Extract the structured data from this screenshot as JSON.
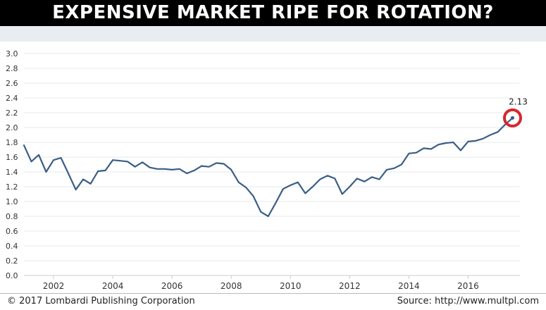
{
  "banner": {
    "title": "EXPENSIVE MARKET RIPE FOR ROTATION?"
  },
  "footer": {
    "copyright": "© 2017 Lombardi Publishing Corporation",
    "source": "Source: http://www.multpl.com"
  },
  "colors": {
    "line": "#3a5e86",
    "highlight": "#d7262d",
    "banner": "#000000",
    "grid": "#e6e9ed"
  },
  "chart_data": {
    "type": "line",
    "title": "",
    "xlabel": "",
    "ylabel": "",
    "xlim": [
      2001,
      2017.75
    ],
    "ylim": [
      0.0,
      3.0
    ],
    "grid": true,
    "x_ticks": [
      2002,
      2004,
      2006,
      2008,
      2010,
      2012,
      2014,
      2016
    ],
    "y_ticks": [
      "0.0",
      "0.2",
      "0.4",
      "0.6",
      "0.8",
      "1.0",
      "1.2",
      "1.4",
      "1.6",
      "1.8",
      "2.0",
      "2.2",
      "2.4",
      "2.6",
      "2.8",
      "3.0"
    ],
    "series": [
      {
        "x": [
          2001.0,
          2001.25,
          2001.5,
          2001.75,
          2002.0,
          2002.25,
          2002.5,
          2002.75,
          2003.0,
          2003.25,
          2003.5,
          2003.75,
          2004.0,
          2004.25,
          2004.5,
          2004.75,
          2005.0,
          2005.25,
          2005.5,
          2005.75,
          2006.0,
          2006.25,
          2006.5,
          2006.75,
          2007.0,
          2007.25,
          2007.5,
          2007.75,
          2008.0,
          2008.25,
          2008.5,
          2008.75,
          2009.0,
          2009.25,
          2009.5,
          2009.75,
          2010.0,
          2010.25,
          2010.5,
          2010.75,
          2011.0,
          2011.25,
          2011.5,
          2011.75,
          2012.0,
          2012.25,
          2012.5,
          2012.75,
          2013.0,
          2013.25,
          2013.5,
          2013.75,
          2014.0,
          2014.25,
          2014.5,
          2014.75,
          2015.0,
          2015.25,
          2015.5,
          2015.75,
          2016.0,
          2016.25,
          2016.5,
          2016.75,
          2017.0,
          2017.25,
          2017.5
        ],
        "values": [
          1.76,
          1.54,
          1.63,
          1.4,
          1.56,
          1.59,
          1.38,
          1.16,
          1.3,
          1.24,
          1.41,
          1.42,
          1.56,
          1.55,
          1.54,
          1.47,
          1.53,
          1.46,
          1.44,
          1.44,
          1.43,
          1.44,
          1.38,
          1.42,
          1.48,
          1.47,
          1.52,
          1.51,
          1.43,
          1.26,
          1.19,
          1.07,
          0.86,
          0.8,
          0.98,
          1.17,
          1.22,
          1.26,
          1.11,
          1.2,
          1.3,
          1.35,
          1.31,
          1.1,
          1.2,
          1.31,
          1.27,
          1.33,
          1.3,
          1.43,
          1.45,
          1.5,
          1.65,
          1.66,
          1.72,
          1.71,
          1.77,
          1.79,
          1.8,
          1.69,
          1.81,
          1.82,
          1.85,
          1.9,
          1.94,
          2.04,
          2.13
        ]
      }
    ],
    "annotations": [
      {
        "x": 2017.5,
        "y": 2.13,
        "text": "2.13"
      }
    ]
  }
}
